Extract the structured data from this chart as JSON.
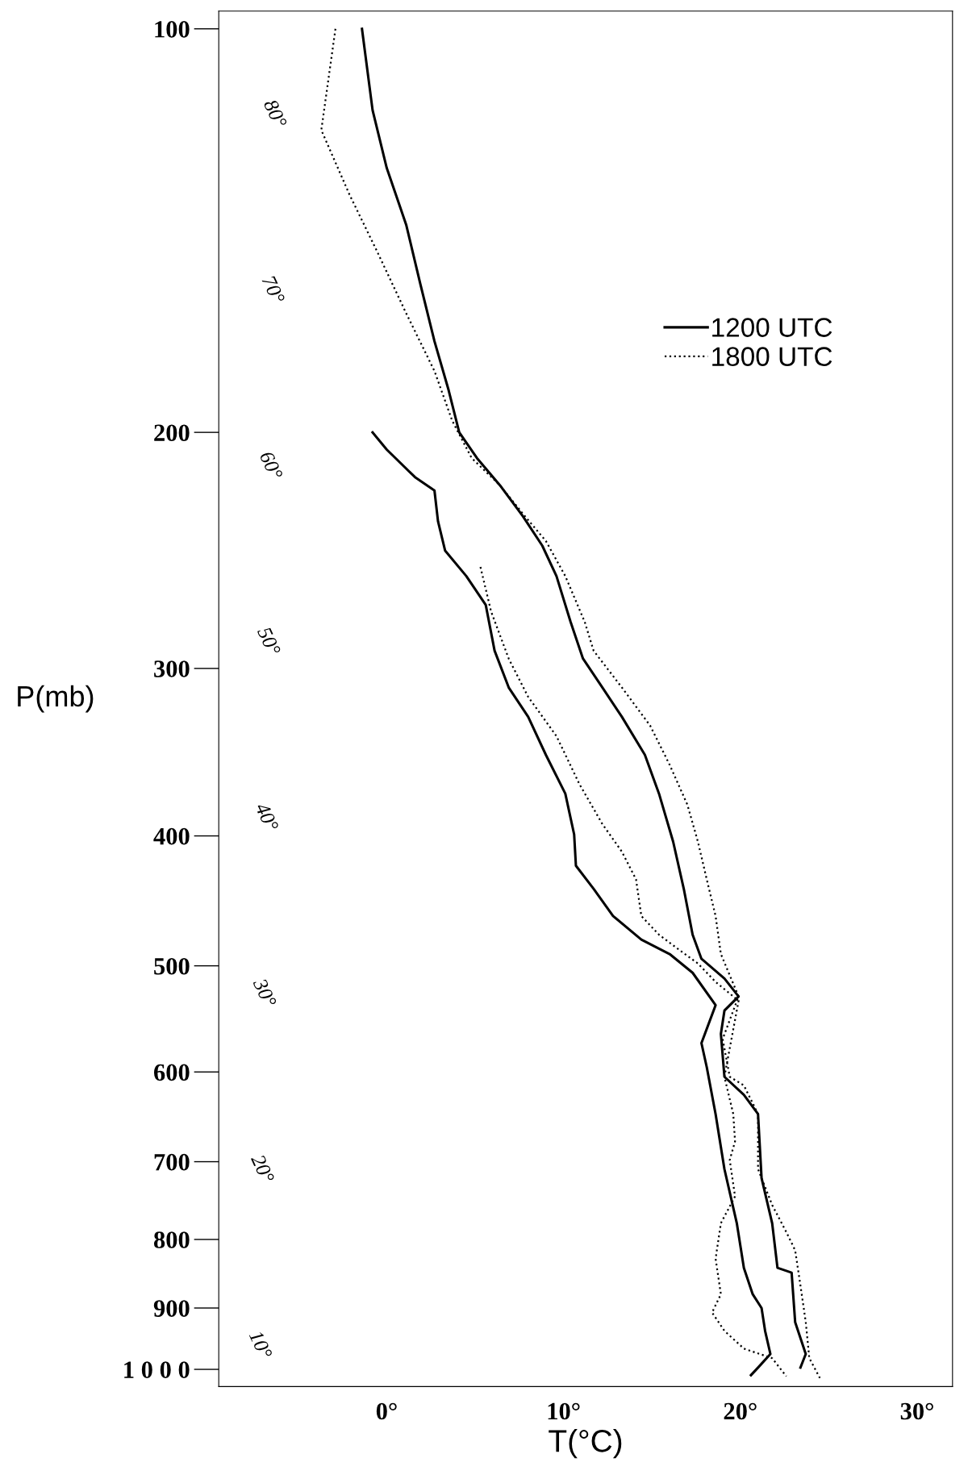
{
  "chart_data": {
    "type": "line",
    "xlabel": "T(°C)",
    "ylabel": "P(mb)",
    "xlim": [
      -9.5,
      32
    ],
    "xticks": [
      {
        "value": 0,
        "label": "0°"
      },
      {
        "value": 10,
        "label": "10°"
      },
      {
        "value": 20,
        "label": "20°"
      },
      {
        "value": 30,
        "label": "30°"
      }
    ],
    "ylim": [
      1030,
      97
    ],
    "log": "y",
    "yticks": [
      100,
      200,
      300,
      400,
      500,
      600,
      700,
      800,
      900,
      {
        "value": 1000,
        "label": "1 0 0 0"
      }
    ],
    "grid": false,
    "legend": "top right",
    "series": [
      {
        "name": "1200 UTC",
        "color": "#000000",
        "line_style": "solid",
        "x": [
          -1.4,
          -0.8,
          0,
          1.1,
          1.9,
          2.7,
          3.5,
          4.1,
          5.1,
          6.4,
          7.7,
          8.8,
          9.6,
          10.4,
          11.1,
          12.2,
          13.3,
          14.6,
          15.4,
          16.2,
          16.8,
          17.3,
          17.8,
          19.1,
          19.9,
          19.1,
          18.9,
          19.1,
          20.2,
          21.0,
          21.2,
          21.8,
          22.1,
          22.9,
          23.1,
          23.7,
          23.4
        ],
        "values": [
          100,
          115,
          127,
          140,
          155,
          171,
          186,
          200,
          209,
          219,
          231,
          243,
          256,
          277,
          295,
          310,
          326,
          348,
          372,
          404,
          438,
          474,
          494,
          511,
          527,
          540,
          562,
          605,
          624,
          645,
          720,
          778,
          840,
          847,
          922,
          974,
          997
        ]
      },
      {
        "name": "1800 UTC",
        "color": "#000000",
        "line_style": "dotted",
        "x": [
          -2.9,
          -3.7,
          -2.1,
          -0.5,
          1.1,
          2.7,
          3.7,
          4.8,
          6.4,
          7.7,
          9.0,
          10.1,
          11.2,
          11.7,
          13.3,
          14.9,
          16.0,
          17.0,
          17.6,
          18.1,
          18.6,
          18.9,
          19.9,
          19.0,
          19.4,
          20.2,
          21.0,
          21.0,
          21.8,
          22.6,
          23.1,
          23.4,
          23.7,
          23.9,
          24.5
        ],
        "values": [
          100,
          119,
          133,
          147,
          163,
          180,
          196,
          209,
          219,
          230,
          241,
          256,
          277,
          291,
          310,
          331,
          354,
          379,
          404,
          431,
          459,
          490,
          527,
          567,
          605,
          614,
          645,
          709,
          754,
          790,
          815,
          866,
          922,
          981,
          1015
        ]
      },
      {
        "color": "#000000",
        "line_style": "solid",
        "x": [
          -0.8,
          0,
          1.6,
          2.7,
          2.9,
          3.3,
          4.5,
          5.6,
          6.1,
          6.9,
          8.0,
          9.0,
          10.1,
          10.6,
          10.7,
          11.7,
          12.8,
          14.4,
          16.0,
          17.3,
          18.6,
          17.8,
          18.1,
          18.6,
          19.1,
          19.8,
          20.2,
          20.7,
          21.2,
          21.4,
          21.7,
          21.0,
          20.6
        ],
        "values": [
          200,
          206,
          216,
          221,
          233,
          245,
          256,
          269,
          291,
          310,
          326,
          348,
          372,
          399,
          421,
          438,
          459,
          478,
          490,
          506,
          535,
          571,
          595,
          645,
          709,
          778,
          840,
          879,
          900,
          936,
          974,
          997,
          1010
        ]
      },
      {
        "color": "#000000",
        "line_style": "dotted",
        "x": [
          5.3,
          5.9,
          6.9,
          8.0,
          9.6,
          10.9,
          12.2,
          13.3,
          14.1,
          14.4,
          15.4,
          16.5,
          17.6,
          18.6,
          19.9,
          19.1,
          19.6,
          19.7,
          19.4,
          19.7,
          18.9,
          18.6,
          18.9,
          18.4,
          19.1,
          20.2,
          21.8,
          22.6
        ],
        "values": [
          252,
          272,
          295,
          315,
          337,
          366,
          392,
          411,
          431,
          459,
          474,
          486,
          498,
          514,
          531,
          605,
          645,
          676,
          698,
          743,
          778,
          827,
          879,
          907,
          936,
          965,
          981,
          1012
        ]
      }
    ],
    "annotations": [
      "80°",
      "70°",
      "60°",
      "50°",
      "40°",
      "30°",
      "20°",
      "10°"
    ]
  }
}
